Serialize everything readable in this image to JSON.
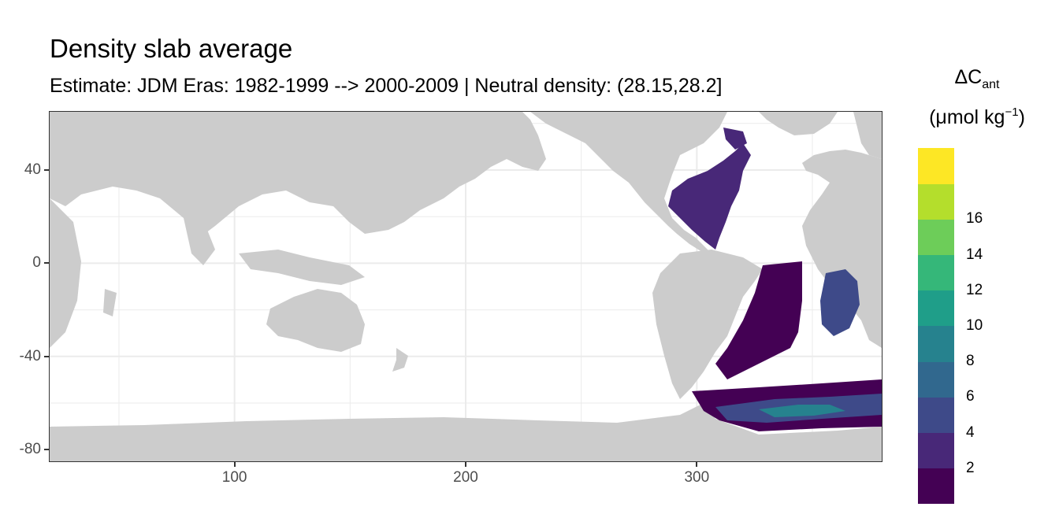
{
  "title": "Density slab average",
  "subtitle": "Estimate: JDM Eras: 1982-1999 --> 2000-2009 | Neutral density: (28.15,28.2]",
  "map": {
    "xlim": [
      20,
      380
    ],
    "ylim": [
      -85,
      65
    ],
    "x_breaks": [
      100,
      200,
      300
    ],
    "x_labels": [
      "100",
      "200",
      "300"
    ],
    "y_breaks": [
      40,
      0,
      -40,
      -80
    ],
    "y_labels": [
      "40",
      "0",
      "-40",
      "-80"
    ],
    "grid": true,
    "land_color": "#cccccc",
    "background_color": "#ffffff",
    "grid_color": "#ebebeb"
  },
  "legend": {
    "title_main": "ΔC",
    "title_sub": "ant",
    "unit_prefix": "(μmol kg",
    "unit_sup": "−1",
    "unit_suffix": ")",
    "placement": "right",
    "bins": [
      {
        "color": "#440154"
      },
      {
        "color": "#482878"
      },
      {
        "color": "#3e4a89"
      },
      {
        "color": "#31688e"
      },
      {
        "color": "#26828e"
      },
      {
        "color": "#1f9e89"
      },
      {
        "color": "#35b779"
      },
      {
        "color": "#6dcd59"
      },
      {
        "color": "#b4de2c"
      },
      {
        "color": "#fde725"
      }
    ],
    "labels": [
      "2",
      "4",
      "6",
      "8",
      "10",
      "12",
      "14",
      "16"
    ]
  }
}
